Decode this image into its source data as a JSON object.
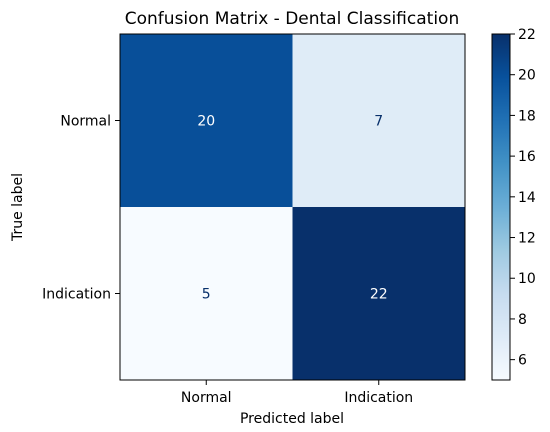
{
  "chart_data": {
    "type": "heatmap",
    "title": "Confusion Matrix - Dental Classification",
    "xlabel": "Predicted label",
    "ylabel": "True label",
    "x_categories": [
      "Normal",
      "Indication"
    ],
    "y_categories": [
      "Normal",
      "Indication"
    ],
    "values": [
      [
        20,
        7
      ],
      [
        5,
        22
      ]
    ],
    "colormap": "Blues",
    "colorbar": {
      "range": [
        5,
        22
      ],
      "ticks": [
        "6",
        "8",
        "10",
        "12",
        "14",
        "16",
        "18",
        "20",
        "22"
      ]
    },
    "cell_text_colors": {
      "dark_bg": "#ffffff",
      "light_bg": "#08306b"
    }
  }
}
